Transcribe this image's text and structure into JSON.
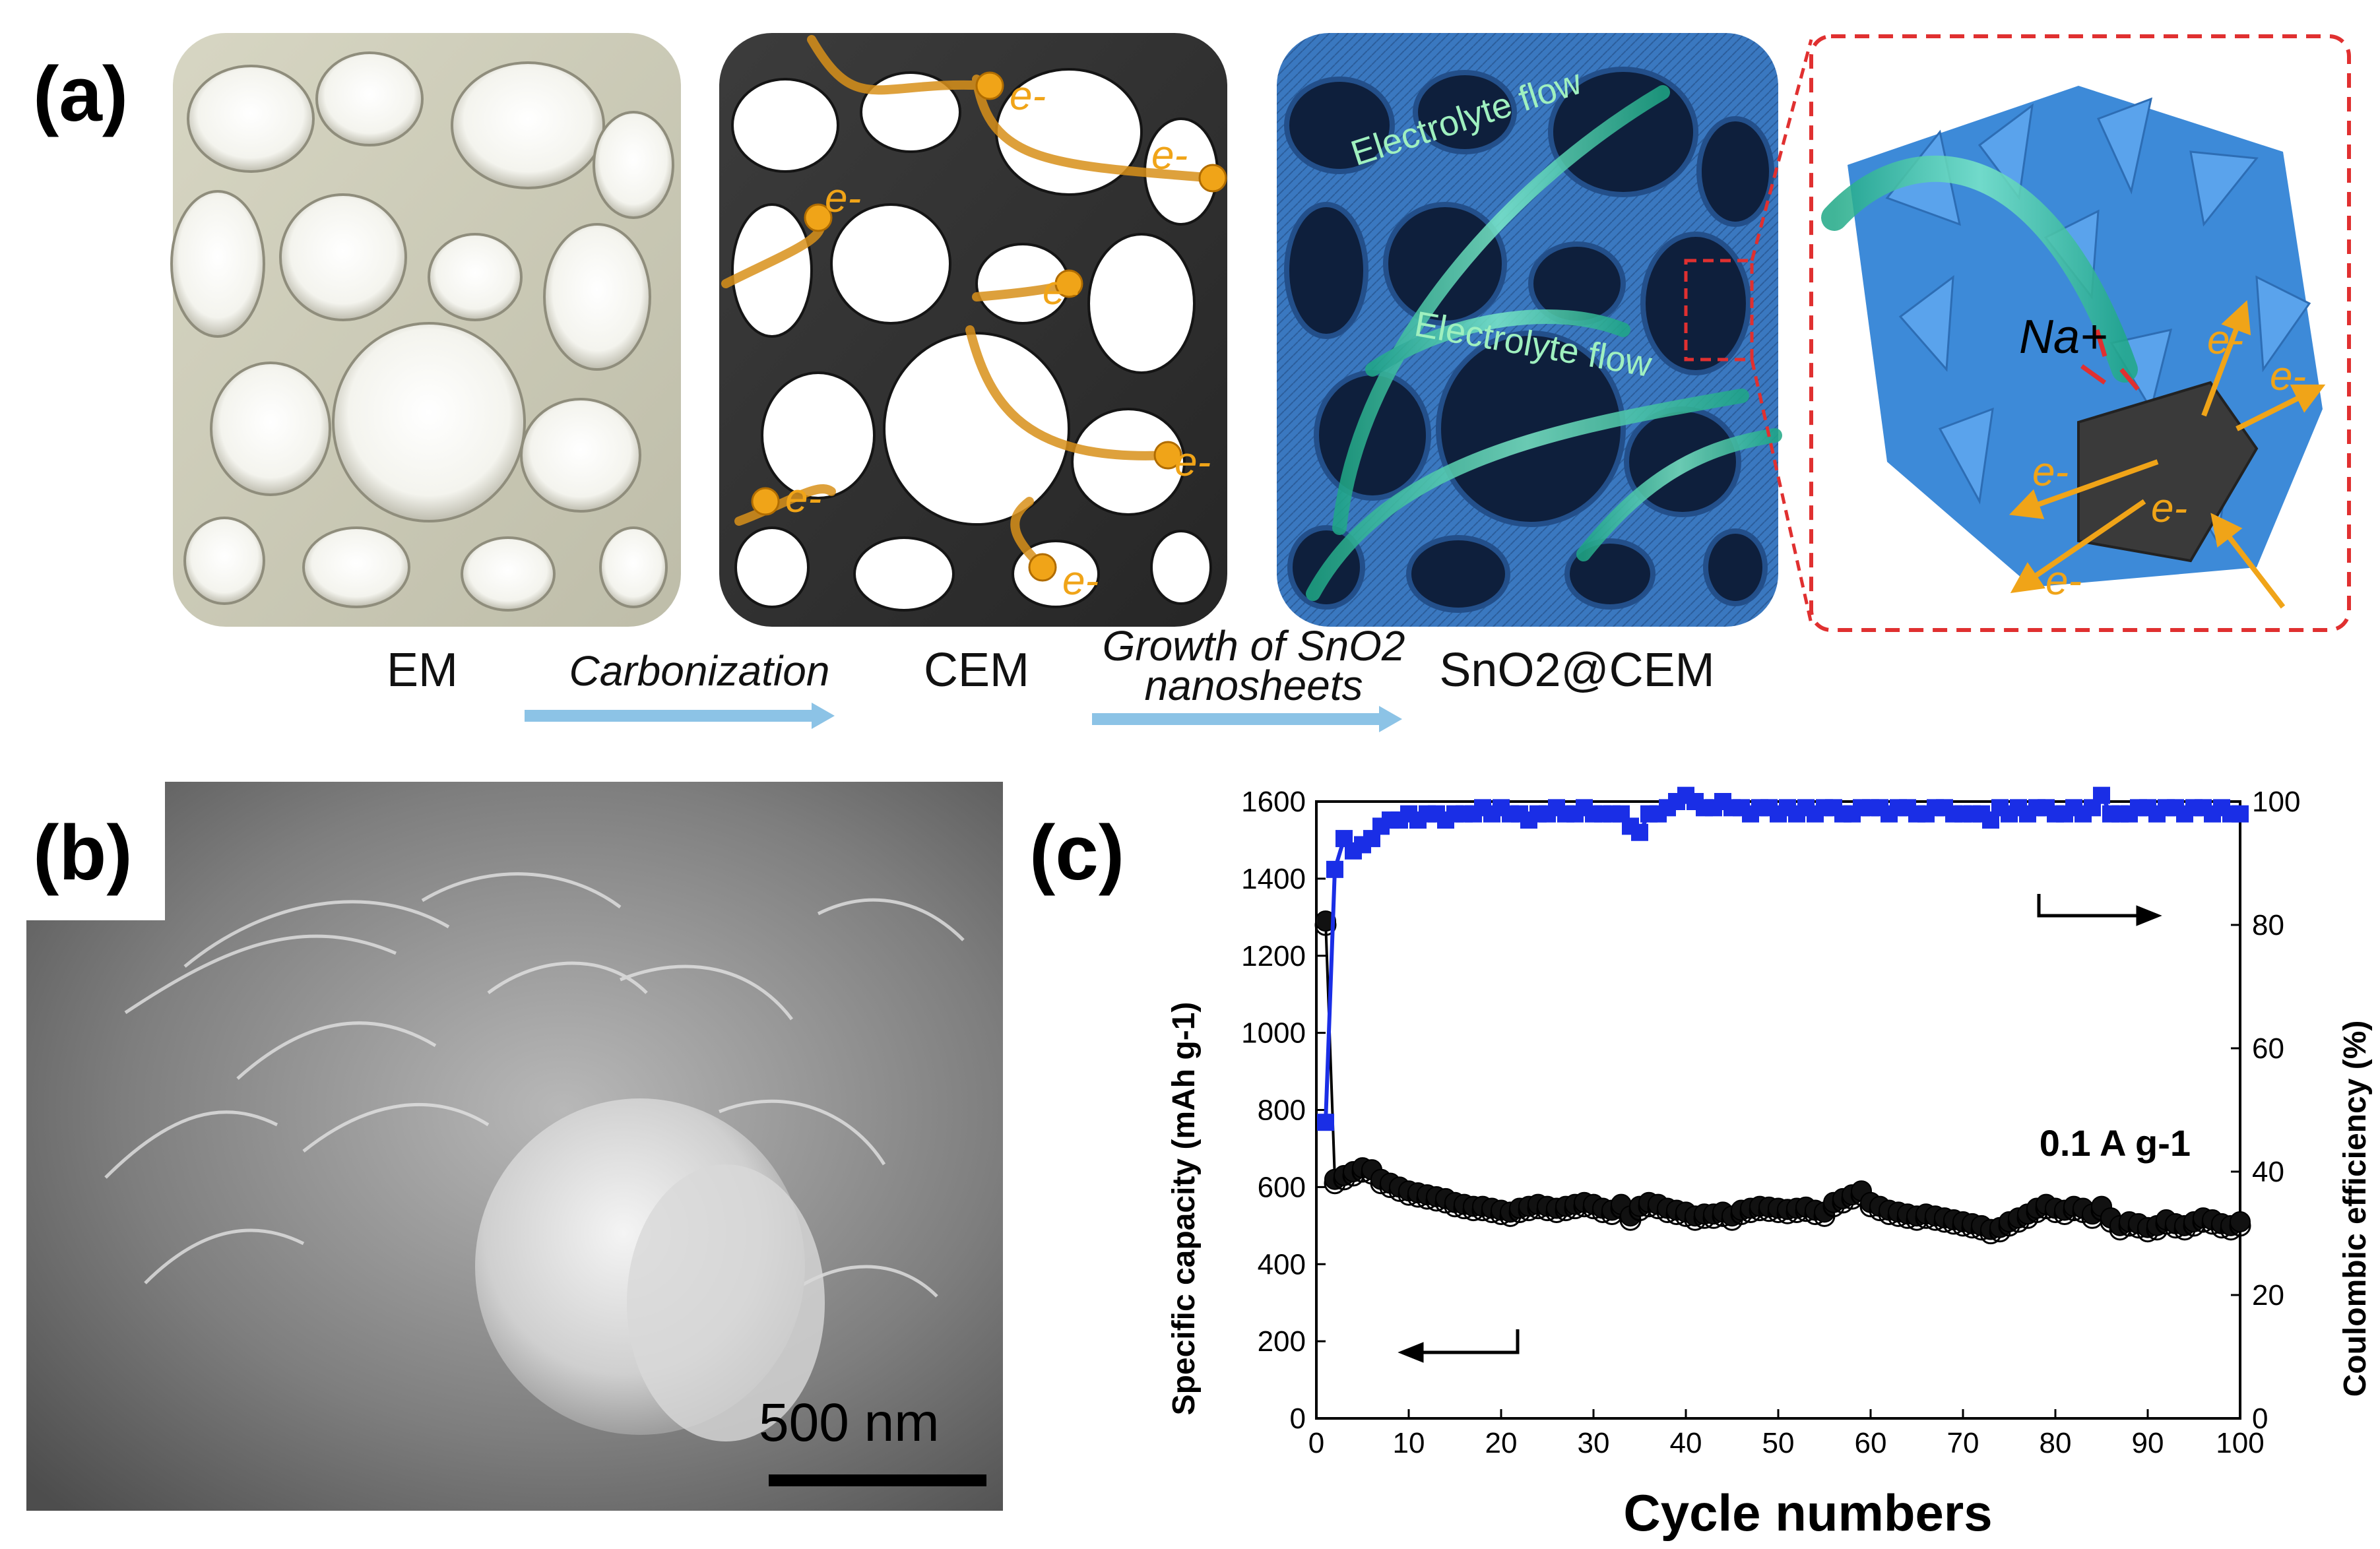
{
  "panel_a": {
    "letter": "(a)",
    "stages": [
      "EM",
      "CEM",
      "SnO2@CEM"
    ],
    "arrows": [
      {
        "label": "Carbonization"
      },
      {
        "label_line1": "Growth of SnO2",
        "label_line2": "nanosheets"
      }
    ],
    "electron_label": "e-",
    "electrolyte_flow_label": "Electrolyte flow",
    "ion_label": "Na+",
    "colors": {
      "em": "#d9d8c8",
      "cem": "#333333",
      "sno2": "#3d7fc7",
      "arrow": "#8cc3e6",
      "electron": "#f0a418",
      "flow": "#3fc7a6",
      "dash_box": "#e03030"
    }
  },
  "panel_b": {
    "letter": "(b)",
    "scale_bar_label": "500 nm"
  },
  "panel_c": {
    "letter": "(c)",
    "rate_label": "0.1 A g-1",
    "chart_data": {
      "type": "scatter",
      "xlabel": "Cycle numbers",
      "ylabel_left": "Specific capacity (mAh g-1)",
      "ylabel_right": "Coulombic efficiency (%)",
      "xlim": [
        0,
        100
      ],
      "ylim_left": [
        0,
        1600
      ],
      "ylim_right": [
        0,
        100
      ],
      "x_ticks": [
        0,
        10,
        20,
        30,
        40,
        50,
        60,
        70,
        80,
        90,
        100
      ],
      "y_left_ticks": [
        0,
        200,
        400,
        600,
        800,
        1000,
        1200,
        1400,
        1600
      ],
      "y_right_ticks": [
        0,
        20,
        40,
        60,
        80,
        100
      ],
      "series": [
        {
          "axis": "left",
          "color": "#000000",
          "x": [
            1,
            2,
            3,
            4,
            5,
            6,
            7,
            8,
            9,
            10,
            11,
            12,
            13,
            14,
            15,
            16,
            17,
            18,
            19,
            20,
            21,
            22,
            23,
            24,
            25,
            26,
            27,
            28,
            29,
            30,
            31,
            32,
            33,
            34,
            35,
            36,
            37,
            38,
            39,
            40,
            41,
            42,
            43,
            44,
            45,
            46,
            47,
            48,
            49,
            50,
            51,
            52,
            53,
            54,
            55,
            56,
            57,
            58,
            59,
            60,
            61,
            62,
            63,
            64,
            65,
            66,
            67,
            68,
            69,
            70,
            71,
            72,
            73,
            74,
            75,
            76,
            77,
            78,
            79,
            80,
            81,
            82,
            83,
            84,
            85,
            86,
            87,
            88,
            89,
            90,
            91,
            92,
            93,
            94,
            95,
            96,
            97,
            98,
            99,
            100
          ],
          "y": [
            1290,
            620,
            630,
            640,
            650,
            645,
            620,
            610,
            600,
            590,
            585,
            580,
            575,
            570,
            560,
            555,
            550,
            550,
            545,
            540,
            535,
            545,
            550,
            555,
            550,
            545,
            550,
            555,
            560,
            555,
            545,
            540,
            555,
            525,
            550,
            560,
            555,
            545,
            540,
            535,
            525,
            530,
            530,
            535,
            525,
            540,
            545,
            550,
            548,
            545,
            542,
            545,
            548,
            540,
            535,
            560,
            570,
            580,
            590,
            560,
            550,
            540,
            535,
            530,
            525,
            530,
            525,
            520,
            515,
            510,
            505,
            500,
            490,
            495,
            510,
            520,
            530,
            545,
            555,
            545,
            540,
            550,
            545,
            530,
            550,
            520,
            500,
            510,
            505,
            495,
            500,
            515,
            505,
            500,
            510,
            520,
            515,
            505,
            500,
            510
          ]
        },
        {
          "axis": "right",
          "color": "#1a2ee6",
          "x": [
            1,
            2,
            3,
            4,
            5,
            6,
            7,
            8,
            9,
            10,
            11,
            12,
            13,
            14,
            15,
            16,
            17,
            18,
            19,
            20,
            21,
            22,
            23,
            24,
            25,
            26,
            27,
            28,
            29,
            30,
            31,
            32,
            33,
            34,
            35,
            36,
            37,
            38,
            39,
            40,
            41,
            42,
            43,
            44,
            45,
            46,
            47,
            48,
            49,
            50,
            51,
            52,
            53,
            54,
            55,
            56,
            57,
            58,
            59,
            60,
            61,
            62,
            63,
            64,
            65,
            66,
            67,
            68,
            69,
            70,
            71,
            72,
            73,
            74,
            75,
            76,
            77,
            78,
            79,
            80,
            81,
            82,
            83,
            84,
            85,
            86,
            87,
            88,
            89,
            90,
            91,
            92,
            93,
            94,
            95,
            96,
            97,
            98,
            99,
            100
          ],
          "y": [
            48,
            89,
            94,
            92,
            93,
            94,
            96,
            97,
            97,
            98,
            97,
            98,
            98,
            97,
            98,
            98,
            98,
            99,
            98,
            99,
            98,
            98,
            97,
            98,
            98,
            99,
            98,
            98,
            99,
            98,
            98,
            98,
            98,
            96,
            95,
            98,
            98,
            99,
            100,
            101,
            100,
            99,
            99,
            100,
            99,
            99,
            98,
            99,
            99,
            98,
            99,
            98,
            99,
            98,
            99,
            99,
            98,
            98,
            99,
            99,
            99,
            98,
            99,
            99,
            98,
            98,
            99,
            99,
            98,
            98,
            98,
            98,
            97,
            99,
            98,
            99,
            98,
            99,
            99,
            98,
            98,
            99,
            98,
            99,
            101,
            98,
            98,
            98,
            99,
            99,
            98,
            99,
            99,
            98,
            99,
            99,
            98,
            99,
            98,
            98
          ]
        }
      ]
    }
  }
}
